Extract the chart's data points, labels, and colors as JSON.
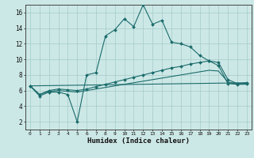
{
  "xlabel": "Humidex (Indice chaleur)",
  "background_color": "#cce8e6",
  "grid_color": "#aacfcd",
  "line_color": "#1a6b6b",
  "xlim": [
    -0.5,
    23.5
  ],
  "ylim": [
    1,
    17
  ],
  "xticks": [
    0,
    1,
    2,
    3,
    4,
    5,
    6,
    7,
    8,
    9,
    10,
    11,
    12,
    13,
    14,
    15,
    16,
    17,
    18,
    19,
    20,
    21,
    22,
    23
  ],
  "yticks": [
    2,
    4,
    6,
    8,
    10,
    12,
    14,
    16
  ],
  "line1_x": [
    0,
    1,
    2,
    3,
    4,
    5,
    6,
    7,
    8,
    9,
    10,
    11,
    12,
    13,
    14,
    15,
    16,
    17,
    18,
    19,
    20,
    21,
    22,
    23
  ],
  "line1_y": [
    6.6,
    5.3,
    5.8,
    5.8,
    5.5,
    2.0,
    8.0,
    8.3,
    13.0,
    13.8,
    15.2,
    14.2,
    17.0,
    14.5,
    15.0,
    12.2,
    12.0,
    11.6,
    10.5,
    9.8,
    9.2,
    6.9,
    6.8,
    7.0
  ],
  "line2_x": [
    0,
    1,
    2,
    3,
    4,
    5,
    6,
    7,
    8,
    9,
    10,
    11,
    12,
    13,
    14,
    15,
    16,
    17,
    18,
    19,
    20,
    21,
    22,
    23
  ],
  "line2_y": [
    6.6,
    5.5,
    6.0,
    6.2,
    6.1,
    6.0,
    6.2,
    6.5,
    6.8,
    7.1,
    7.4,
    7.7,
    8.0,
    8.3,
    8.6,
    8.9,
    9.1,
    9.4,
    9.6,
    9.8,
    9.6,
    7.4,
    6.9,
    6.9
  ],
  "line3_x": [
    0,
    1,
    2,
    3,
    4,
    5,
    6,
    7,
    8,
    9,
    10,
    11,
    12,
    13,
    14,
    15,
    16,
    17,
    18,
    19,
    20,
    21,
    22,
    23
  ],
  "line3_y": [
    6.6,
    5.5,
    5.9,
    6.0,
    5.9,
    5.8,
    6.0,
    6.2,
    6.4,
    6.6,
    6.8,
    7.0,
    7.2,
    7.4,
    7.6,
    7.8,
    8.0,
    8.2,
    8.4,
    8.6,
    8.5,
    7.1,
    6.8,
    6.8
  ],
  "line4_x": [
    0,
    23
  ],
  "line4_y": [
    6.6,
    7.0
  ]
}
